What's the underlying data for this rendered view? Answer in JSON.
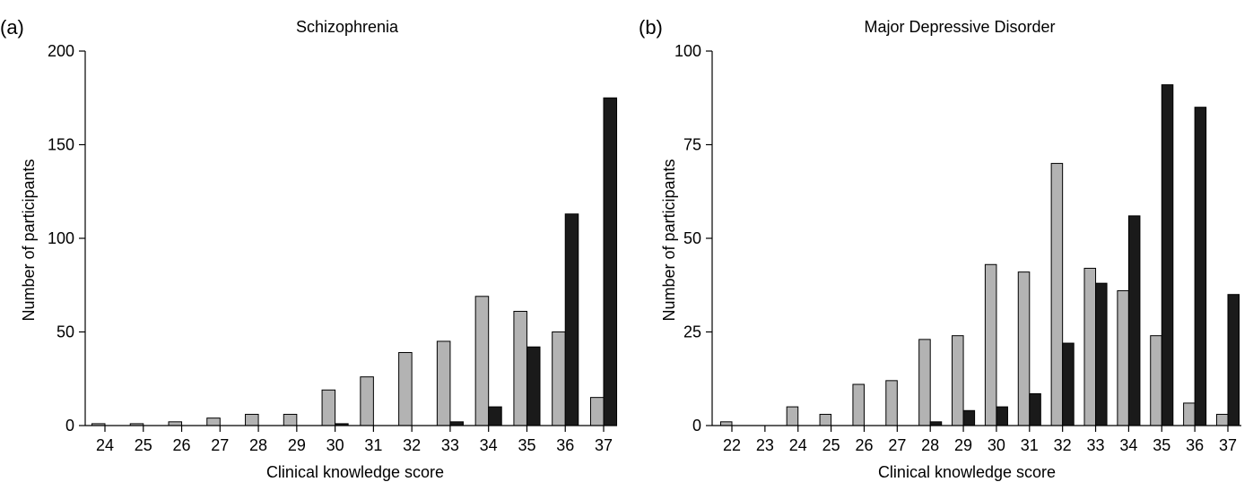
{
  "colors": {
    "series_light": "#b3b3b3",
    "series_dark": "#1a1a1a",
    "axis": "#000000"
  },
  "chart_data": [
    {
      "type": "bar",
      "panel_label": "(a)",
      "title": "Schizophrenia",
      "xlabel": "Clinical knowledge score",
      "ylabel": "Number of participants",
      "ylim": [
        0,
        200
      ],
      "yticks": [
        0,
        50,
        100,
        150,
        200
      ],
      "grid": false,
      "categories": [
        "24",
        "25",
        "26",
        "27",
        "28",
        "29",
        "30",
        "31",
        "32",
        "33",
        "34",
        "35",
        "36",
        "37"
      ],
      "series": [
        {
          "color": "#b3b3b3",
          "values": [
            1,
            1,
            2,
            4,
            6,
            6,
            19,
            26,
            39,
            45,
            69,
            61,
            50,
            15
          ]
        },
        {
          "color": "#1a1a1a",
          "values": [
            0,
            0,
            0,
            0,
            0,
            0,
            1,
            0,
            0,
            2,
            10,
            42,
            113,
            175
          ]
        }
      ]
    },
    {
      "type": "bar",
      "panel_label": "(b)",
      "title": "Major Depressive Disorder",
      "xlabel": "Clinical knowledge score",
      "ylabel": "Number of participants",
      "ylim": [
        0,
        100
      ],
      "yticks": [
        0,
        25,
        50,
        75,
        100
      ],
      "grid": false,
      "categories": [
        "22",
        "23",
        "24",
        "25",
        "26",
        "27",
        "28",
        "29",
        "30",
        "31",
        "32",
        "33",
        "34",
        "35",
        "36",
        "37"
      ],
      "series": [
        {
          "color": "#b3b3b3",
          "values": [
            1,
            0,
            5,
            3,
            11,
            12,
            23,
            24,
            43,
            41,
            70,
            42,
            36,
            24,
            6,
            3
          ]
        },
        {
          "color": "#1a1a1a",
          "values": [
            0,
            0,
            0,
            0,
            0,
            0,
            1,
            4,
            5,
            8.5,
            22,
            38,
            56,
            91,
            85,
            35
          ]
        }
      ]
    }
  ]
}
